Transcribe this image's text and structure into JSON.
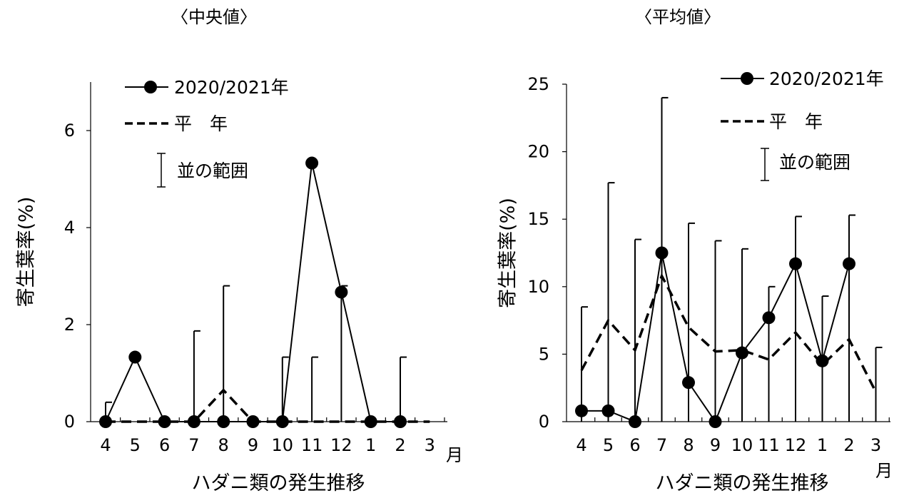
{
  "chart_data": [
    {
      "type": "line",
      "title": "〈中央値〉",
      "xlabel": "ハダニ類の発生推移",
      "ylabel": "寄生葉率(%)",
      "x_unit": "月",
      "categories": [
        "4",
        "5",
        "6",
        "7",
        "8",
        "9",
        "10",
        "11",
        "12",
        "1",
        "2",
        "3"
      ],
      "ylim": [
        0,
        7
      ],
      "yticks": [
        "0",
        "2",
        "4",
        "6"
      ],
      "series": [
        {
          "name": "2020/2021年",
          "style": "solid-circle-markers",
          "values": [
            0,
            1.33,
            0,
            0,
            0,
            0,
            0,
            5.33,
            2.67,
            0,
            0,
            null
          ]
        },
        {
          "name": "平　年",
          "style": "dashed",
          "values": [
            0,
            0,
            0,
            0,
            0.65,
            0,
            0,
            0,
            0,
            0,
            0,
            0
          ]
        }
      ],
      "range_bars": {
        "name": "並の範囲",
        "upper": [
          0.4,
          0,
          0,
          1.87,
          2.8,
          0,
          1.33,
          1.33,
          2.8,
          0,
          1.33,
          0
        ],
        "lower": [
          0,
          0,
          0,
          0,
          0,
          0,
          0,
          0,
          0,
          0,
          0,
          0
        ]
      },
      "legend_position": "top-left",
      "grid": false
    },
    {
      "type": "line",
      "title": "〈平均値〉",
      "xlabel": "ハダニ類の発生推移",
      "ylabel": "寄生葉率(%)",
      "x_unit": "月",
      "categories": [
        "4",
        "5",
        "6",
        "7",
        "8",
        "9",
        "10",
        "11",
        "12",
        "1",
        "2",
        "3"
      ],
      "ylim": [
        0,
        25
      ],
      "yticks": [
        "0",
        "5",
        "10",
        "15",
        "20",
        "25"
      ],
      "series": [
        {
          "name": "2020/2021年",
          "style": "solid-circle-markers",
          "values": [
            0.8,
            0.8,
            0,
            12.5,
            2.9,
            0,
            5.1,
            7.7,
            11.7,
            4.5,
            11.7,
            null
          ]
        },
        {
          "name": "平　年",
          "style": "dashed",
          "values": [
            3.8,
            7.5,
            5.3,
            10.8,
            7.0,
            5.2,
            5.3,
            4.6,
            6.6,
            4.2,
            6.1,
            2.2
          ]
        }
      ],
      "range_bars": {
        "name": "並の範囲",
        "upper": [
          8.5,
          17.7,
          13.5,
          24.0,
          14.7,
          13.4,
          12.8,
          10.0,
          15.2,
          9.3,
          15.3,
          5.5
        ],
        "lower": [
          0,
          0,
          0,
          0,
          0,
          0,
          0,
          0,
          0,
          0,
          0,
          0
        ]
      },
      "legend_position": "top-right",
      "grid": false
    }
  ]
}
